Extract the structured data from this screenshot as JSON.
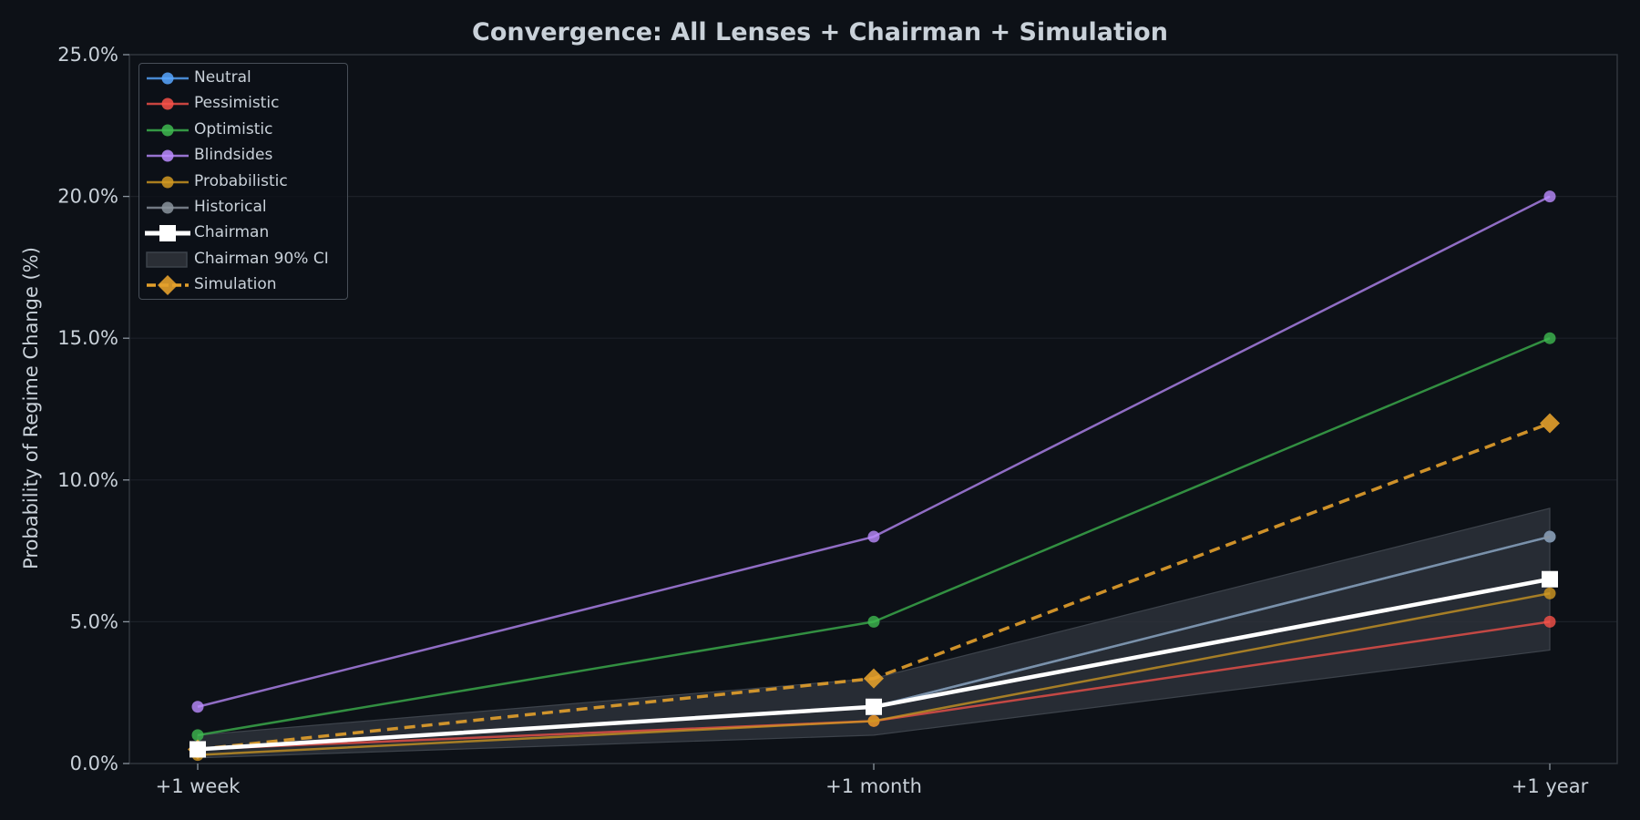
{
  "chart_data": {
    "type": "line",
    "title": "Convergence: All Lenses + Chairman + Simulation",
    "xlabel": "",
    "ylabel": "Probability of Regime Change (%)",
    "categories": [
      "+1 week",
      "+1 month",
      "+1 year"
    ],
    "ylim": [
      0,
      25
    ],
    "yticks": [
      "0.0%",
      "5.0%",
      "10.0%",
      "15.0%",
      "20.0%",
      "25.0%"
    ],
    "grid": true,
    "legend_position": "upper left",
    "series": [
      {
        "name": "Neutral",
        "values": [
          0.5,
          2.0,
          8.0
        ],
        "color": "#58a6ff",
        "marker": "circle",
        "style": "solid"
      },
      {
        "name": "Pessimistic",
        "values": [
          0.5,
          1.5,
          5.0
        ],
        "color": "#f85149",
        "marker": "circle",
        "style": "solid"
      },
      {
        "name": "Optimistic",
        "values": [
          1.0,
          5.0,
          15.0
        ],
        "color": "#3fb950",
        "marker": "circle",
        "style": "solid"
      },
      {
        "name": "Blindsides",
        "values": [
          2.0,
          8.0,
          20.0
        ],
        "color": "#bc8cff",
        "marker": "circle",
        "style": "solid"
      },
      {
        "name": "Probabilistic",
        "values": [
          0.3,
          1.5,
          6.0
        ],
        "color": "#d29922",
        "marker": "circle",
        "style": "solid"
      },
      {
        "name": "Historical",
        "values": [
          0.5,
          2.0,
          8.0
        ],
        "color": "#8b949e",
        "marker": "circle",
        "style": "solid"
      },
      {
        "name": "Chairman",
        "values": [
          0.5,
          2.0,
          6.5
        ],
        "color": "#ffffff",
        "marker": "square",
        "style": "solid"
      },
      {
        "name": "Simulation",
        "values": [
          0.5,
          3.0,
          12.0
        ],
        "color": "#e3a02b",
        "marker": "diamond",
        "style": "dashed"
      }
    ],
    "bands": [
      {
        "name": "Chairman 90% CI",
        "lower": [
          0.2,
          1.0,
          4.0
        ],
        "upper": [
          1.0,
          3.0,
          9.0
        ],
        "color": "#30363d"
      }
    ]
  },
  "legend": {
    "items": [
      {
        "label": "Neutral"
      },
      {
        "label": "Pessimistic"
      },
      {
        "label": "Optimistic"
      },
      {
        "label": "Blindsides"
      },
      {
        "label": "Probabilistic"
      },
      {
        "label": "Historical"
      },
      {
        "label": "Chairman"
      },
      {
        "label": "Chairman 90% CI"
      },
      {
        "label": "Simulation"
      }
    ]
  },
  "colors": {
    "background": "#0d1117",
    "spine": "#30363d",
    "grid": "#1c2128",
    "text": "#c9d1d9"
  }
}
